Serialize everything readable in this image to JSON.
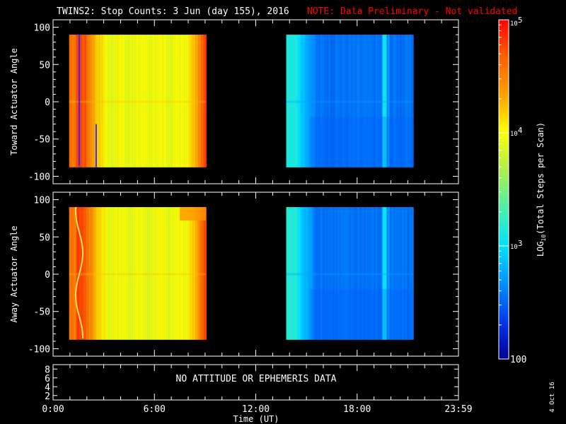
{
  "title": {
    "main": "TWINS2: Stop Counts:  3 Jun (day 155), 2016",
    "note": "NOTE: Data Preliminary - Not validated",
    "note_color": "#ff0000"
  },
  "date_stamp": "4 Oct 16",
  "chart_data": [
    {
      "type": "heatmap",
      "name": "toward-actuator-panel",
      "ylabel": "Toward Actuator Angle",
      "ylim": [
        -110,
        110
      ],
      "yticks": [
        100,
        50,
        0,
        -50,
        -100
      ],
      "xlim": [
        0,
        24
      ],
      "data_angle_range": [
        -88,
        90
      ],
      "segments": [
        {
          "start_hour": 0.95,
          "end_hour": 9.05,
          "trend": "orange-red at 1.5h, green 3h-8h, orange-red near 8.8h",
          "approx_log10_range": [
            3.8,
            4.9
          ]
        },
        {
          "start_hour": 13.8,
          "end_hour": 21.3,
          "trend": "light blue at 14h, deep blue 15.5h-21h, cyan stripe near 19.6h",
          "approx_log10_range": [
            2.4,
            3.2
          ]
        }
      ]
    },
    {
      "type": "heatmap",
      "name": "away-actuator-panel",
      "ylabel": "Away Actuator Angle",
      "ylim": [
        -110,
        110
      ],
      "yticks": [
        100,
        50,
        0,
        -50,
        -100
      ],
      "xlim": [
        0,
        24
      ],
      "data_angle_range": [
        -88,
        90
      ],
      "segments": [
        {
          "start_hour": 0.95,
          "end_hour": 9.05,
          "trend": "orange-red at 1.5h, green 3h-8h, orange-red near 8.8h, orange patch 7.5h-9h above 70 deg",
          "approx_log10_range": [
            3.8,
            4.9
          ]
        },
        {
          "start_hour": 13.8,
          "end_hour": 21.3,
          "trend": "light blue at 14h, deep blue 15.5h-21h, cyan stripe near 19.6h",
          "approx_log10_range": [
            2.4,
            3.2
          ]
        }
      ]
    },
    {
      "type": "table",
      "name": "ephemeris-panel",
      "yticks": [
        8,
        6,
        4,
        2
      ],
      "ylim": [
        1,
        9
      ],
      "message": "NO ATTITUDE OR EPHEMERIS DATA"
    }
  ],
  "xaxis": {
    "label": "Time (UT)",
    "ticks": [
      {
        "hour": 0,
        "label": "0:00"
      },
      {
        "hour": 6,
        "label": "6:00"
      },
      {
        "hour": 12,
        "label": "12:00"
      },
      {
        "hour": 18,
        "label": "18:00"
      },
      {
        "hour": 24,
        "label": "23:59"
      }
    ]
  },
  "colorbar": {
    "label": "LOG10(Total Steps per Scan)",
    "label_main": "LOG",
    "label_sub": "10",
    "label_rest": "(Total Steps per Scan)",
    "log_min": 2,
    "log_max": 5,
    "ticks": [
      {
        "base": "10",
        "exp": "5",
        "value": 5
      },
      {
        "base": "10",
        "exp": "4",
        "value": 4
      },
      {
        "base": "10",
        "exp": "3",
        "value": 3
      },
      {
        "base": "100",
        "exp": "",
        "value": 2
      }
    ]
  }
}
